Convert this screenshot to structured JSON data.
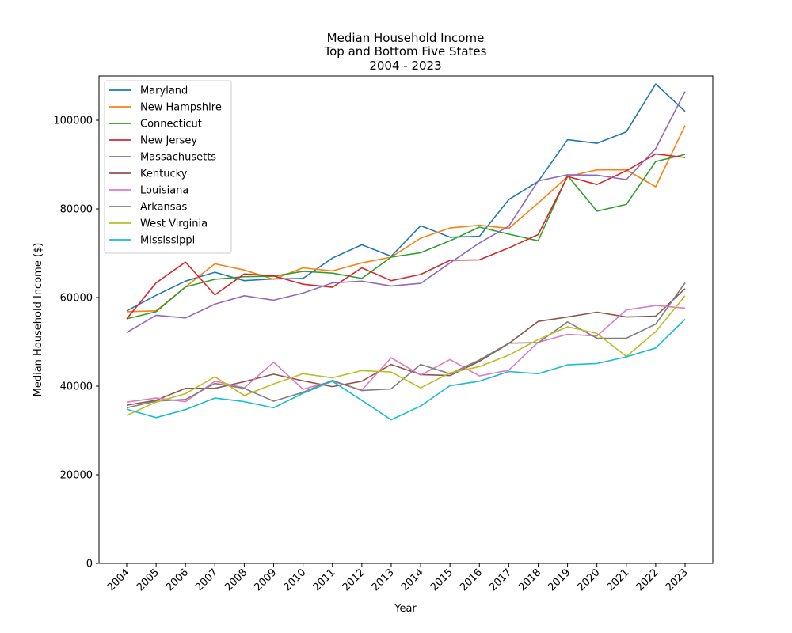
{
  "chart_data": {
    "type": "line",
    "title_lines": [
      "Median Household Income",
      "Top and Bottom Five States",
      "2004 - 2023"
    ],
    "xlabel": "Year",
    "ylabel": "Median Household Income ($)",
    "x": [
      "2004",
      "2005",
      "2006",
      "2007",
      "2008",
      "2009",
      "2010",
      "2011",
      "2012",
      "2013",
      "2014",
      "2015",
      "2016",
      "2017",
      "2018",
      "2019",
      "2020",
      "2021",
      "2022",
      "2023"
    ],
    "ylim": [
      0,
      110000
    ],
    "yticks": [
      0,
      20000,
      40000,
      60000,
      80000,
      100000
    ],
    "grid": false,
    "legend_position": "upper-left",
    "series": [
      {
        "name": "Maryland",
        "color": "#1f77b4",
        "values": [
          57000,
          60500,
          63700,
          65700,
          63800,
          64200,
          64300,
          68900,
          71900,
          69300,
          76200,
          73600,
          73800,
          82100,
          86200,
          95600,
          94800,
          97400,
          108200,
          102000
        ]
      },
      {
        "name": "New Hampshire",
        "color": "#ff7f0e",
        "values": [
          56800,
          57000,
          62400,
          67600,
          66200,
          64100,
          66700,
          66000,
          67800,
          69100,
          73400,
          75700,
          76300,
          75600,
          81300,
          87300,
          88800,
          88800,
          85000,
          98800
        ]
      },
      {
        "name": "Connecticut",
        "color": "#2ca02c",
        "values": [
          55200,
          56800,
          62400,
          64100,
          64700,
          64800,
          65900,
          65500,
          64300,
          69100,
          70100,
          72800,
          75900,
          74300,
          72800,
          87500,
          79500,
          81000,
          90700,
          92300
        ]
      },
      {
        "name": "New Jersey",
        "color": "#d62728",
        "values": [
          55200,
          63300,
          68000,
          60600,
          65300,
          64900,
          63000,
          62300,
          66700,
          63800,
          65200,
          68400,
          68500,
          71200,
          74200,
          87300,
          85500,
          88600,
          92400,
          91600
        ]
      },
      {
        "name": "Massachusetts",
        "color": "#9467bd",
        "values": [
          52100,
          56000,
          55400,
          58500,
          60400,
          59400,
          61000,
          63300,
          63700,
          62600,
          63200,
          67800,
          72300,
          76100,
          86300,
          87700,
          87600,
          86600,
          93600,
          106500
        ]
      },
      {
        "name": "Kentucky",
        "color": "#8c564b",
        "values": [
          35700,
          36800,
          39500,
          39500,
          41000,
          42700,
          41200,
          39900,
          41100,
          44900,
          42600,
          42400,
          45600,
          49600,
          54600,
          55600,
          56700,
          55600,
          55800,
          62000
        ]
      },
      {
        "name": "Louisiana",
        "color": "#e377c2",
        "values": [
          36400,
          37300,
          36500,
          41100,
          39600,
          45400,
          39300,
          41100,
          39100,
          46400,
          42500,
          46000,
          42300,
          43600,
          49900,
          51700,
          51300,
          57200,
          58200,
          57600
        ]
      },
      {
        "name": "Arkansas",
        "color": "#7f7f7f",
        "values": [
          35100,
          36600,
          37000,
          40600,
          39500,
          36600,
          38600,
          41300,
          39000,
          39400,
          44900,
          42800,
          45900,
          49700,
          49800,
          54500,
          50800,
          50800,
          54000,
          63300
        ]
      },
      {
        "name": "West Virginia",
        "color": "#bcbd22",
        "values": [
          33400,
          36400,
          38300,
          42100,
          37900,
          40500,
          42800,
          41900,
          43500,
          43200,
          39600,
          43000,
          44400,
          47000,
          50500,
          53400,
          51900,
          46700,
          52300,
          60400
        ]
      },
      {
        "name": "Mississippi",
        "color": "#17becf",
        "values": [
          34800,
          32900,
          34700,
          37300,
          36500,
          35100,
          38400,
          41100,
          36800,
          32400,
          35500,
          40100,
          41100,
          43300,
          42800,
          44800,
          45100,
          46600,
          48600,
          55100
        ]
      }
    ]
  }
}
